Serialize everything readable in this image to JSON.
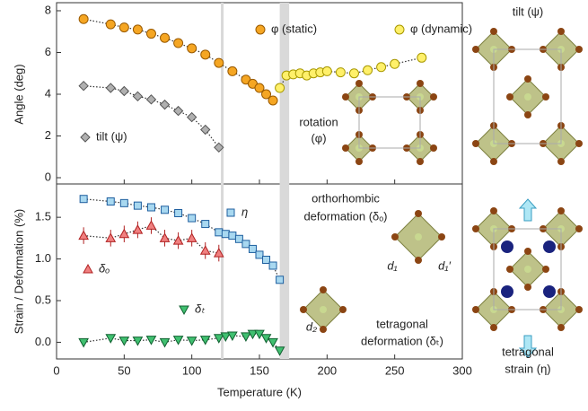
{
  "chart_data": [
    {
      "type": "scatter",
      "ylabel": "Angle (deg)",
      "xlim": [
        0,
        300
      ],
      "ylim": [
        -0.3,
        8.3
      ],
      "yticks": [
        0,
        2,
        4,
        6,
        8
      ],
      "shaded_regions": [
        [
          121.5,
          123.5
        ],
        [
          165,
          172
        ]
      ],
      "series": [
        {
          "name": "φ (static)",
          "marker": "circle",
          "color": "#f5a623",
          "x": [
            20,
            40,
            50,
            60,
            70,
            80,
            90,
            100,
            110,
            120,
            130,
            140,
            145,
            150,
            155,
            160
          ],
          "values": [
            7.6,
            7.35,
            7.2,
            7.1,
            6.9,
            6.7,
            6.45,
            6.2,
            5.9,
            5.5,
            5.1,
            4.7,
            4.5,
            4.3,
            4.0,
            3.7
          ]
        },
        {
          "name": "φ (dynamic)",
          "marker": "circle",
          "color": "#fff06a",
          "x": [
            165,
            170,
            175,
            180,
            185,
            190,
            195,
            200,
            210,
            220,
            230,
            240,
            250,
            270
          ],
          "values": [
            4.3,
            4.9,
            4.95,
            5.0,
            4.9,
            5.0,
            5.05,
            5.1,
            5.05,
            5.0,
            5.15,
            5.3,
            5.45,
            5.75
          ]
        },
        {
          "name": "tilt (ψ)",
          "marker": "diamond",
          "color": "#b0b0b0",
          "x": [
            20,
            40,
            50,
            60,
            70,
            80,
            90,
            100,
            110,
            120
          ],
          "values": [
            4.4,
            4.3,
            4.15,
            3.9,
            3.75,
            3.5,
            3.2,
            2.9,
            2.3,
            1.45
          ]
        }
      ],
      "annotations": [
        "rotation",
        "(φ)"
      ]
    },
    {
      "type": "scatter",
      "ylabel": "Strain / Deformation (%)",
      "xlabel": "Temperature (K)",
      "xlim": [
        0,
        300
      ],
      "xticks": [
        0,
        50,
        100,
        150,
        200,
        250,
        300
      ],
      "ylim": [
        -0.2,
        1.9
      ],
      "yticks": [
        {
          "value": 0,
          "label": "0.0"
        },
        {
          "value": 0.5,
          "label": "0.5"
        },
        {
          "value": 1,
          "label": "1.0"
        },
        {
          "value": 1.5,
          "label": "1.5"
        }
      ],
      "shaded_regions": [
        [
          121.5,
          123.5
        ],
        [
          165,
          172
        ]
      ],
      "series": [
        {
          "name": "η",
          "marker": "square",
          "color": "#a8d8f0",
          "x": [
            20,
            40,
            50,
            60,
            70,
            80,
            90,
            100,
            110,
            120,
            125,
            130,
            135,
            140,
            145,
            150,
            155,
            160,
            165
          ],
          "values": [
            1.72,
            1.69,
            1.67,
            1.64,
            1.62,
            1.59,
            1.55,
            1.49,
            1.42,
            1.32,
            1.3,
            1.28,
            1.24,
            1.18,
            1.12,
            1.05,
            0.99,
            0.92,
            0.75
          ]
        },
        {
          "name": "δₒ",
          "marker": "triangle-up",
          "color": "#f08080",
          "x": [
            20,
            40,
            50,
            60,
            70,
            80,
            90,
            100,
            110,
            120
          ],
          "values": [
            1.28,
            1.25,
            1.3,
            1.35,
            1.4,
            1.25,
            1.22,
            1.25,
            1.1,
            1.07
          ],
          "errors": [
            0.1,
            0.1,
            0.1,
            0.1,
            0.1,
            0.1,
            0.1,
            0.1,
            0.1,
            0.1
          ]
        },
        {
          "name": "δₜ",
          "marker": "triangle-down",
          "color": "#40c070",
          "x": [
            20,
            40,
            50,
            60,
            70,
            80,
            90,
            100,
            110,
            120,
            125,
            130,
            140,
            145,
            150,
            155,
            160,
            165
          ],
          "values": [
            0.0,
            0.05,
            0.02,
            0.02,
            0.03,
            0.0,
            0.03,
            0.02,
            0.03,
            0.05,
            0.07,
            0.08,
            0.07,
            0.1,
            0.1,
            0.05,
            0.0,
            -0.1
          ],
          "errors": [
            0.04,
            0.04,
            0.04,
            0.04,
            0.04,
            0.04,
            0.04,
            0.04,
            0.04,
            0.04,
            0.04,
            0.04,
            0.04,
            0.04,
            0.04,
            0.04,
            0.04,
            0.04
          ]
        }
      ],
      "annotations": {
        "ortho": [
          "orthorhombic",
          "deformation (δₒ)"
        ],
        "tetra": [
          "tetragonal",
          "deformation (δₜ)"
        ],
        "d1": "d₁",
        "d1p": "d₁′",
        "d2": "d₂"
      }
    }
  ],
  "illustrations": {
    "tilt": "tilt (ψ)",
    "strain": [
      "tetragonal",
      "strain (η)"
    ]
  }
}
